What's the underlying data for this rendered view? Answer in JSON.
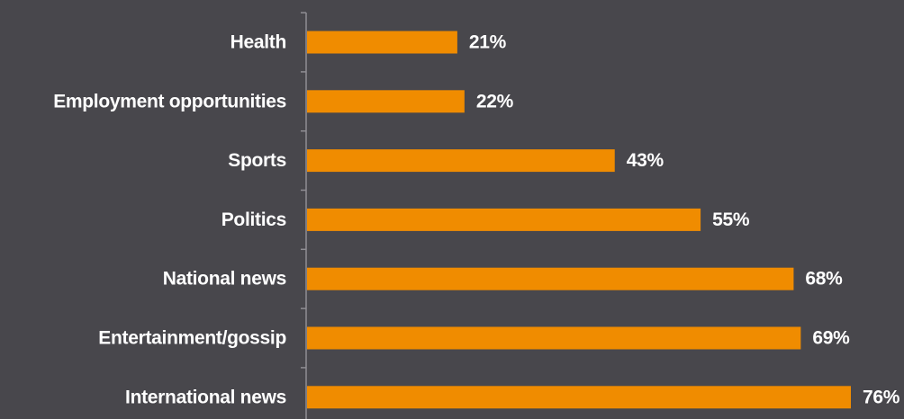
{
  "colors": {
    "background": "#48474c",
    "bar": "#f08c00",
    "axis": "#8f8e93",
    "text": "#ffffff"
  },
  "chart_data": {
    "type": "bar",
    "orientation": "horizontal",
    "categories": [
      "Health",
      "Employment opportunities",
      "Sports",
      "Politics",
      "National news",
      "Entertainment/gossip",
      "International news"
    ],
    "values": [
      21,
      22,
      43,
      55,
      68,
      69,
      76
    ],
    "value_labels": [
      "21%",
      "22%",
      "43%",
      "55%",
      "68%",
      "69%",
      "76%"
    ],
    "unit": "%",
    "xlim": [
      0,
      76
    ],
    "grid": false,
    "legend": "none"
  }
}
